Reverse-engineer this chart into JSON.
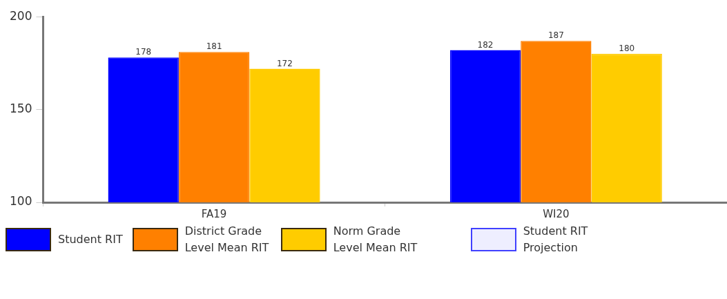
{
  "chart_data": {
    "type": "bar",
    "categories": [
      "FA19",
      "WI20"
    ],
    "series": [
      {
        "name": "Student RIT",
        "color": "#0000ff",
        "values": [
          178,
          182
        ]
      },
      {
        "name": "District Grade Level Mean RIT",
        "color": "#ff8000",
        "values": [
          181,
          187
        ]
      },
      {
        "name": "Norm Grade Level Mean RIT",
        "color": "#ffcc00",
        "values": [
          172,
          180
        ]
      },
      {
        "name": "Student RIT Projection",
        "color": "#4040ff",
        "values": [
          null,
          null
        ]
      }
    ],
    "ylim": [
      100,
      200
    ],
    "yticks": [
      100,
      150,
      200
    ],
    "data_labels": true,
    "grid": false,
    "legend": "bottom"
  }
}
